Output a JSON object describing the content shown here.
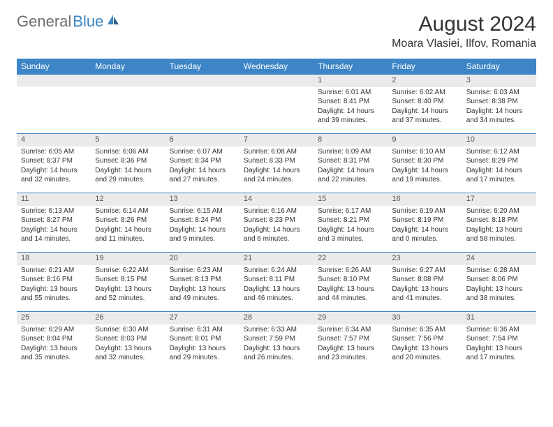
{
  "logo": {
    "text_gray": "General",
    "text_blue": "Blue"
  },
  "header": {
    "month_title": "August 2024",
    "location": "Moara Vlasiei, Ilfov, Romania"
  },
  "colors": {
    "accent": "#3d85c6",
    "header_text": "#ffffff",
    "day_num_bg": "#ebebeb",
    "body_text": "#333333",
    "logo_gray": "#6b6b6b"
  },
  "day_names": [
    "Sunday",
    "Monday",
    "Tuesday",
    "Wednesday",
    "Thursday",
    "Friday",
    "Saturday"
  ],
  "weeks": [
    [
      null,
      null,
      null,
      null,
      {
        "n": "1",
        "sr": "Sunrise: 6:01 AM",
        "ss": "Sunset: 8:41 PM",
        "d1": "Daylight: 14 hours",
        "d2": "and 39 minutes."
      },
      {
        "n": "2",
        "sr": "Sunrise: 6:02 AM",
        "ss": "Sunset: 8:40 PM",
        "d1": "Daylight: 14 hours",
        "d2": "and 37 minutes."
      },
      {
        "n": "3",
        "sr": "Sunrise: 6:03 AM",
        "ss": "Sunset: 8:38 PM",
        "d1": "Daylight: 14 hours",
        "d2": "and 34 minutes."
      }
    ],
    [
      {
        "n": "4",
        "sr": "Sunrise: 6:05 AM",
        "ss": "Sunset: 8:37 PM",
        "d1": "Daylight: 14 hours",
        "d2": "and 32 minutes."
      },
      {
        "n": "5",
        "sr": "Sunrise: 6:06 AM",
        "ss": "Sunset: 8:36 PM",
        "d1": "Daylight: 14 hours",
        "d2": "and 29 minutes."
      },
      {
        "n": "6",
        "sr": "Sunrise: 6:07 AM",
        "ss": "Sunset: 8:34 PM",
        "d1": "Daylight: 14 hours",
        "d2": "and 27 minutes."
      },
      {
        "n": "7",
        "sr": "Sunrise: 6:08 AM",
        "ss": "Sunset: 8:33 PM",
        "d1": "Daylight: 14 hours",
        "d2": "and 24 minutes."
      },
      {
        "n": "8",
        "sr": "Sunrise: 6:09 AM",
        "ss": "Sunset: 8:31 PM",
        "d1": "Daylight: 14 hours",
        "d2": "and 22 minutes."
      },
      {
        "n": "9",
        "sr": "Sunrise: 6:10 AM",
        "ss": "Sunset: 8:30 PM",
        "d1": "Daylight: 14 hours",
        "d2": "and 19 minutes."
      },
      {
        "n": "10",
        "sr": "Sunrise: 6:12 AM",
        "ss": "Sunset: 8:29 PM",
        "d1": "Daylight: 14 hours",
        "d2": "and 17 minutes."
      }
    ],
    [
      {
        "n": "11",
        "sr": "Sunrise: 6:13 AM",
        "ss": "Sunset: 8:27 PM",
        "d1": "Daylight: 14 hours",
        "d2": "and 14 minutes."
      },
      {
        "n": "12",
        "sr": "Sunrise: 6:14 AM",
        "ss": "Sunset: 8:26 PM",
        "d1": "Daylight: 14 hours",
        "d2": "and 11 minutes."
      },
      {
        "n": "13",
        "sr": "Sunrise: 6:15 AM",
        "ss": "Sunset: 8:24 PM",
        "d1": "Daylight: 14 hours",
        "d2": "and 9 minutes."
      },
      {
        "n": "14",
        "sr": "Sunrise: 6:16 AM",
        "ss": "Sunset: 8:23 PM",
        "d1": "Daylight: 14 hours",
        "d2": "and 6 minutes."
      },
      {
        "n": "15",
        "sr": "Sunrise: 6:17 AM",
        "ss": "Sunset: 8:21 PM",
        "d1": "Daylight: 14 hours",
        "d2": "and 3 minutes."
      },
      {
        "n": "16",
        "sr": "Sunrise: 6:19 AM",
        "ss": "Sunset: 8:19 PM",
        "d1": "Daylight: 14 hours",
        "d2": "and 0 minutes."
      },
      {
        "n": "17",
        "sr": "Sunrise: 6:20 AM",
        "ss": "Sunset: 8:18 PM",
        "d1": "Daylight: 13 hours",
        "d2": "and 58 minutes."
      }
    ],
    [
      {
        "n": "18",
        "sr": "Sunrise: 6:21 AM",
        "ss": "Sunset: 8:16 PM",
        "d1": "Daylight: 13 hours",
        "d2": "and 55 minutes."
      },
      {
        "n": "19",
        "sr": "Sunrise: 6:22 AM",
        "ss": "Sunset: 8:15 PM",
        "d1": "Daylight: 13 hours",
        "d2": "and 52 minutes."
      },
      {
        "n": "20",
        "sr": "Sunrise: 6:23 AM",
        "ss": "Sunset: 8:13 PM",
        "d1": "Daylight: 13 hours",
        "d2": "and 49 minutes."
      },
      {
        "n": "21",
        "sr": "Sunrise: 6:24 AM",
        "ss": "Sunset: 8:11 PM",
        "d1": "Daylight: 13 hours",
        "d2": "and 46 minutes."
      },
      {
        "n": "22",
        "sr": "Sunrise: 6:26 AM",
        "ss": "Sunset: 8:10 PM",
        "d1": "Daylight: 13 hours",
        "d2": "and 44 minutes."
      },
      {
        "n": "23",
        "sr": "Sunrise: 6:27 AM",
        "ss": "Sunset: 8:08 PM",
        "d1": "Daylight: 13 hours",
        "d2": "and 41 minutes."
      },
      {
        "n": "24",
        "sr": "Sunrise: 6:28 AM",
        "ss": "Sunset: 8:06 PM",
        "d1": "Daylight: 13 hours",
        "d2": "and 38 minutes."
      }
    ],
    [
      {
        "n": "25",
        "sr": "Sunrise: 6:29 AM",
        "ss": "Sunset: 8:04 PM",
        "d1": "Daylight: 13 hours",
        "d2": "and 35 minutes."
      },
      {
        "n": "26",
        "sr": "Sunrise: 6:30 AM",
        "ss": "Sunset: 8:03 PM",
        "d1": "Daylight: 13 hours",
        "d2": "and 32 minutes."
      },
      {
        "n": "27",
        "sr": "Sunrise: 6:31 AM",
        "ss": "Sunset: 8:01 PM",
        "d1": "Daylight: 13 hours",
        "d2": "and 29 minutes."
      },
      {
        "n": "28",
        "sr": "Sunrise: 6:33 AM",
        "ss": "Sunset: 7:59 PM",
        "d1": "Daylight: 13 hours",
        "d2": "and 26 minutes."
      },
      {
        "n": "29",
        "sr": "Sunrise: 6:34 AM",
        "ss": "Sunset: 7:57 PM",
        "d1": "Daylight: 13 hours",
        "d2": "and 23 minutes."
      },
      {
        "n": "30",
        "sr": "Sunrise: 6:35 AM",
        "ss": "Sunset: 7:56 PM",
        "d1": "Daylight: 13 hours",
        "d2": "and 20 minutes."
      },
      {
        "n": "31",
        "sr": "Sunrise: 6:36 AM",
        "ss": "Sunset: 7:54 PM",
        "d1": "Daylight: 13 hours",
        "d2": "and 17 minutes."
      }
    ]
  ]
}
